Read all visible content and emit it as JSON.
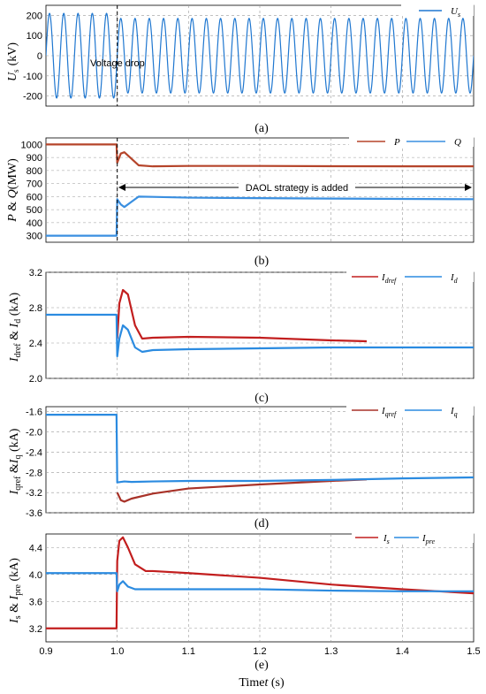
{
  "chart_data": [
    {
      "type": "line",
      "panel_caption": "(a)",
      "ylabel": "U_s (kV)",
      "xlim": [
        0.9,
        1.5
      ],
      "ylim": [
        -250,
        250
      ],
      "yticks": [
        "200",
        "100",
        "0",
        "-100",
        "-200"
      ],
      "ytick_values": [
        200,
        100,
        0,
        -100,
        -200
      ],
      "series": [
        {
          "name": "U_s",
          "color": "#1f77d0",
          "waveform": "sine",
          "frequency_hz": 50,
          "amplitude_before": 210,
          "amplitude_after": 185,
          "change_time": 1.0
        }
      ],
      "annotation": {
        "text": "Voltage drop",
        "x": 1.0
      },
      "grid": true,
      "legend": "top-right"
    },
    {
      "type": "line",
      "panel_caption": "(b)",
      "ylabel": "P & Q (MW)",
      "xlim": [
        0.9,
        1.5
      ],
      "ylim": [
        250,
        1050
      ],
      "yticks": [
        "1000",
        "900",
        "800",
        "700",
        "600",
        "500",
        "400",
        "300"
      ],
      "ytick_values": [
        1000,
        900,
        800,
        700,
        600,
        500,
        400,
        300
      ],
      "series": [
        {
          "name": "P",
          "color": "#b5442a",
          "x": [
            0.9,
            0.999,
            1.0,
            1.005,
            1.01,
            1.02,
            1.03,
            1.05,
            1.1,
            1.2,
            1.3,
            1.4,
            1.5
          ],
          "y": [
            1000,
            1000,
            860,
            930,
            940,
            890,
            840,
            832,
            835,
            835,
            833,
            832,
            832
          ]
        },
        {
          "name": "Q",
          "color": "#3a8fe0",
          "x": [
            0.9,
            0.999,
            1.0,
            1.005,
            1.01,
            1.02,
            1.03,
            1.05,
            1.1,
            1.2,
            1.3,
            1.4,
            1.5
          ],
          "y": [
            300,
            300,
            580,
            540,
            520,
            560,
            600,
            598,
            592,
            588,
            585,
            582,
            580
          ]
        }
      ],
      "annotation": {
        "text": "DAOL  strategy is added",
        "x_start": 1.0,
        "x_end": 1.5,
        "y": 665
      },
      "grid": true,
      "legend": "top-right"
    },
    {
      "type": "line",
      "panel_caption": "(c)",
      "ylabel": "I_dref & I_d (kA)",
      "xlim": [
        0.9,
        1.5
      ],
      "ylim": [
        2.0,
        3.2
      ],
      "yticks": [
        "3.2",
        "2.8",
        "2.4",
        "2.0"
      ],
      "ytick_values": [
        3.2,
        2.8,
        2.4,
        2.0
      ],
      "series": [
        {
          "name": "I_dref",
          "color": "#c21e1e",
          "x": [
            1.0,
            1.003,
            1.008,
            1.015,
            1.025,
            1.035,
            1.05,
            1.1,
            1.2,
            1.3,
            1.35
          ],
          "y": [
            2.45,
            2.85,
            3.0,
            2.95,
            2.6,
            2.45,
            2.46,
            2.47,
            2.46,
            2.43,
            2.42
          ]
        },
        {
          "name": "I_d",
          "color": "#2b8be0",
          "x": [
            0.9,
            0.999,
            1.0,
            1.003,
            1.008,
            1.015,
            1.025,
            1.035,
            1.05,
            1.1,
            1.2,
            1.3,
            1.4,
            1.5
          ],
          "y": [
            2.72,
            2.72,
            2.25,
            2.45,
            2.6,
            2.55,
            2.35,
            2.3,
            2.32,
            2.33,
            2.34,
            2.35,
            2.35,
            2.35
          ]
        }
      ],
      "grid": true,
      "legend": "top-right"
    },
    {
      "type": "line",
      "panel_caption": "(d)",
      "ylabel": "I_qref & I_q (kA)",
      "xlim": [
        0.9,
        1.5
      ],
      "ylim": [
        -3.6,
        -1.5
      ],
      "yticks": [
        "-1.6",
        "-2.0",
        "-2.4",
        "-2.8",
        "-3.2",
        "-3.6"
      ],
      "ytick_values": [
        -1.6,
        -2.0,
        -2.4,
        -2.8,
        -3.2,
        -3.6
      ],
      "series": [
        {
          "name": "I_qref",
          "color": "#a83228",
          "x": [
            1.0,
            1.005,
            1.01,
            1.02,
            1.05,
            1.1,
            1.2,
            1.3,
            1.35
          ],
          "y": [
            -3.2,
            -3.35,
            -3.38,
            -3.32,
            -3.22,
            -3.12,
            -3.04,
            -2.97,
            -2.94
          ]
        },
        {
          "name": "I_q",
          "color": "#2b8be0",
          "x": [
            0.9,
            0.999,
            1.0,
            1.01,
            1.02,
            1.05,
            1.1,
            1.2,
            1.3,
            1.4,
            1.5
          ],
          "y": [
            -1.66,
            -1.66,
            -3.0,
            -2.98,
            -2.99,
            -2.98,
            -2.97,
            -2.97,
            -2.95,
            -2.92,
            -2.9
          ]
        }
      ],
      "grid": true,
      "legend": "top-right"
    },
    {
      "type": "line",
      "panel_caption": "(e)",
      "ylabel": "I_s & I_pre (kA)",
      "xlabel": "Time t (s)",
      "xlim": [
        0.9,
        1.5
      ],
      "ylim": [
        3.0,
        4.6
      ],
      "xticks": [
        "0.9",
        "1.0",
        "1.1",
        "1.2",
        "1.3",
        "1.4",
        "1.5"
      ],
      "xtick_values": [
        0.9,
        1.0,
        1.1,
        1.2,
        1.3,
        1.4,
        1.5
      ],
      "yticks": [
        "4.4",
        "4.0",
        "3.6",
        "3.2"
      ],
      "ytick_values": [
        4.4,
        4.0,
        3.6,
        3.2
      ],
      "series": [
        {
          "name": "I_s",
          "color": "#c21e1e",
          "x": [
            0.9,
            0.999,
            1.0,
            1.003,
            1.008,
            1.015,
            1.025,
            1.04,
            1.05,
            1.1,
            1.2,
            1.3,
            1.4,
            1.5
          ],
          "y": [
            3.2,
            3.2,
            4.2,
            4.5,
            4.55,
            4.4,
            4.15,
            4.05,
            4.05,
            4.02,
            3.95,
            3.85,
            3.78,
            3.72
          ]
        },
        {
          "name": "I_pre",
          "color": "#2b8be0",
          "x": [
            0.9,
            0.999,
            1.0,
            1.003,
            1.008,
            1.015,
            1.025,
            1.04,
            1.1,
            1.2,
            1.3,
            1.4,
            1.5
          ],
          "y": [
            4.02,
            4.02,
            3.75,
            3.85,
            3.9,
            3.82,
            3.78,
            3.78,
            3.78,
            3.78,
            3.76,
            3.75,
            3.75
          ]
        }
      ],
      "grid": true,
      "legend": "top-right"
    }
  ],
  "labels": {
    "cap_a": "(a)",
    "cap_b": "(b)",
    "cap_c": "(c)",
    "cap_d": "(d)",
    "cap_e": "(e)",
    "voltage_drop": "Voltage drop",
    "daol": "DAOL  strategy is added",
    "xlabel_time": "Time",
    "xlabel_t": "t",
    "xlabel_unit": "(s)"
  }
}
